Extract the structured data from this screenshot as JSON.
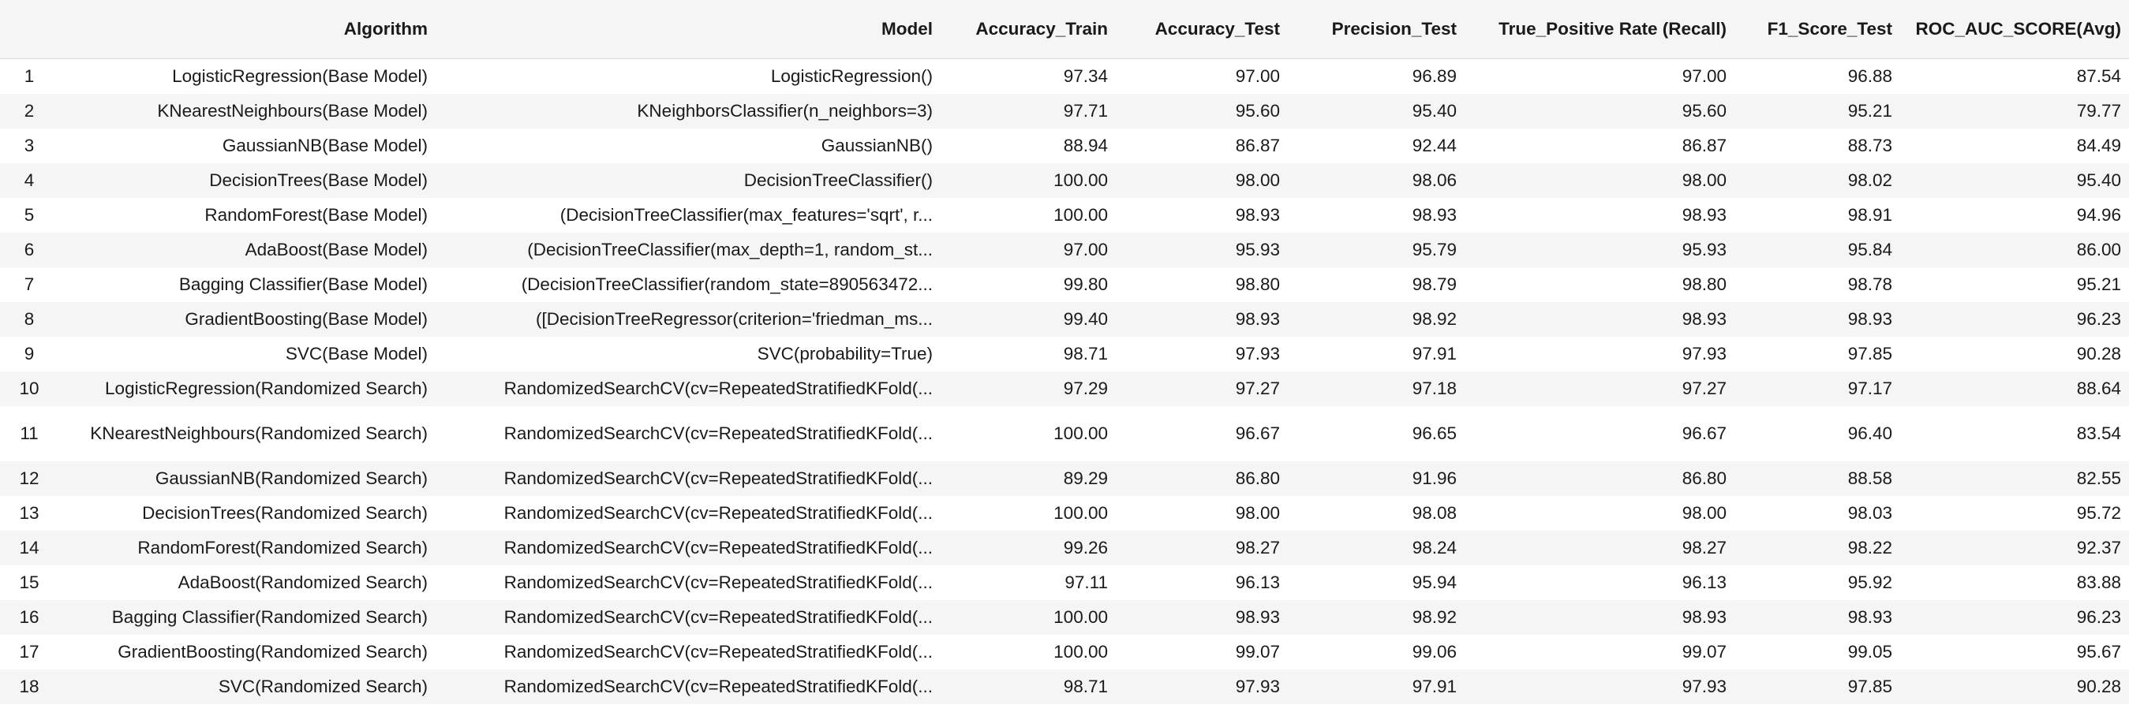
{
  "table": {
    "headers": {
      "index": "",
      "algorithm": "Algorithm",
      "model": "Model",
      "accuracy_train": "Accuracy_Train",
      "accuracy_test": "Accuracy_Test",
      "precision_test": "Precision_Test",
      "recall": "True_Positive Rate (Recall)",
      "f1": "F1_Score_Test",
      "roc_auc": "ROC_AUC_SCORE(Avg)"
    },
    "rows": [
      {
        "idx": "1",
        "algorithm": "LogisticRegression(Base Model)",
        "model": "LogisticRegression()",
        "acc_train": "97.34",
        "acc_test": "97.00",
        "prec": "96.89",
        "recall": "97.00",
        "f1": "96.88",
        "roc": "87.54"
      },
      {
        "idx": "2",
        "algorithm": "KNearestNeighbours(Base Model)",
        "model": "KNeighborsClassifier(n_neighbors=3)",
        "acc_train": "97.71",
        "acc_test": "95.60",
        "prec": "95.40",
        "recall": "95.60",
        "f1": "95.21",
        "roc": "79.77"
      },
      {
        "idx": "3",
        "algorithm": "GaussianNB(Base Model)",
        "model": "GaussianNB()",
        "acc_train": "88.94",
        "acc_test": "86.87",
        "prec": "92.44",
        "recall": "86.87",
        "f1": "88.73",
        "roc": "84.49"
      },
      {
        "idx": "4",
        "algorithm": "DecisionTrees(Base Model)",
        "model": "DecisionTreeClassifier()",
        "acc_train": "100.00",
        "acc_test": "98.00",
        "prec": "98.06",
        "recall": "98.00",
        "f1": "98.02",
        "roc": "95.40"
      },
      {
        "idx": "5",
        "algorithm": "RandomForest(Base Model)",
        "model": "(DecisionTreeClassifier(max_features='sqrt', r...",
        "acc_train": "100.00",
        "acc_test": "98.93",
        "prec": "98.93",
        "recall": "98.93",
        "f1": "98.91",
        "roc": "94.96"
      },
      {
        "idx": "6",
        "algorithm": "AdaBoost(Base Model)",
        "model": "(DecisionTreeClassifier(max_depth=1, random_st...",
        "acc_train": "97.00",
        "acc_test": "95.93",
        "prec": "95.79",
        "recall": "95.93",
        "f1": "95.84",
        "roc": "86.00"
      },
      {
        "idx": "7",
        "algorithm": "Bagging Classifier(Base Model)",
        "model": "(DecisionTreeClassifier(random_state=890563472...",
        "acc_train": "99.80",
        "acc_test": "98.80",
        "prec": "98.79",
        "recall": "98.80",
        "f1": "98.78",
        "roc": "95.21"
      },
      {
        "idx": "8",
        "algorithm": "GradientBoosting(Base Model)",
        "model": "([DecisionTreeRegressor(criterion='friedman_ms...",
        "acc_train": "99.40",
        "acc_test": "98.93",
        "prec": "98.92",
        "recall": "98.93",
        "f1": "98.93",
        "roc": "96.23"
      },
      {
        "idx": "9",
        "algorithm": "SVC(Base Model)",
        "model": "SVC(probability=True)",
        "acc_train": "98.71",
        "acc_test": "97.93",
        "prec": "97.91",
        "recall": "97.93",
        "f1": "97.85",
        "roc": "90.28"
      },
      {
        "idx": "10",
        "algorithm": "LogisticRegression(Randomized Search)",
        "model": "RandomizedSearchCV(cv=RepeatedStratifiedKFold(...",
        "acc_train": "97.29",
        "acc_test": "97.27",
        "prec": "97.18",
        "recall": "97.27",
        "f1": "97.17",
        "roc": "88.64"
      },
      {
        "idx": "11",
        "algorithm": "KNearestNeighbours(Randomized Search)",
        "model": "RandomizedSearchCV(cv=RepeatedStratifiedKFold(...",
        "acc_train": "100.00",
        "acc_test": "96.67",
        "prec": "96.65",
        "recall": "96.67",
        "f1": "96.40",
        "roc": "83.54"
      },
      {
        "idx": "12",
        "algorithm": "GaussianNB(Randomized Search)",
        "model": "RandomizedSearchCV(cv=RepeatedStratifiedKFold(...",
        "acc_train": "89.29",
        "acc_test": "86.80",
        "prec": "91.96",
        "recall": "86.80",
        "f1": "88.58",
        "roc": "82.55"
      },
      {
        "idx": "13",
        "algorithm": "DecisionTrees(Randomized Search)",
        "model": "RandomizedSearchCV(cv=RepeatedStratifiedKFold(...",
        "acc_train": "100.00",
        "acc_test": "98.00",
        "prec": "98.08",
        "recall": "98.00",
        "f1": "98.03",
        "roc": "95.72"
      },
      {
        "idx": "14",
        "algorithm": "RandomForest(Randomized Search)",
        "model": "RandomizedSearchCV(cv=RepeatedStratifiedKFold(...",
        "acc_train": "99.26",
        "acc_test": "98.27",
        "prec": "98.24",
        "recall": "98.27",
        "f1": "98.22",
        "roc": "92.37"
      },
      {
        "idx": "15",
        "algorithm": "AdaBoost(Randomized Search)",
        "model": "RandomizedSearchCV(cv=RepeatedStratifiedKFold(...",
        "acc_train": "97.11",
        "acc_test": "96.13",
        "prec": "95.94",
        "recall": "96.13",
        "f1": "95.92",
        "roc": "83.88"
      },
      {
        "idx": "16",
        "algorithm": "Bagging Classifier(Randomized Search)",
        "model": "RandomizedSearchCV(cv=RepeatedStratifiedKFold(...",
        "acc_train": "100.00",
        "acc_test": "98.93",
        "prec": "98.92",
        "recall": "98.93",
        "f1": "98.93",
        "roc": "96.23"
      },
      {
        "idx": "17",
        "algorithm": "GradientBoosting(Randomized Search)",
        "model": "RandomizedSearchCV(cv=RepeatedStratifiedKFold(...",
        "acc_train": "100.00",
        "acc_test": "99.07",
        "prec": "99.06",
        "recall": "99.07",
        "f1": "99.05",
        "roc": "95.67"
      },
      {
        "idx": "18",
        "algorithm": "SVC(Randomized Search)",
        "model": "RandomizedSearchCV(cv=RepeatedStratifiedKFold(...",
        "acc_train": "98.71",
        "acc_test": "97.93",
        "prec": "97.91",
        "recall": "97.93",
        "f1": "97.85",
        "roc": "90.28"
      }
    ]
  }
}
